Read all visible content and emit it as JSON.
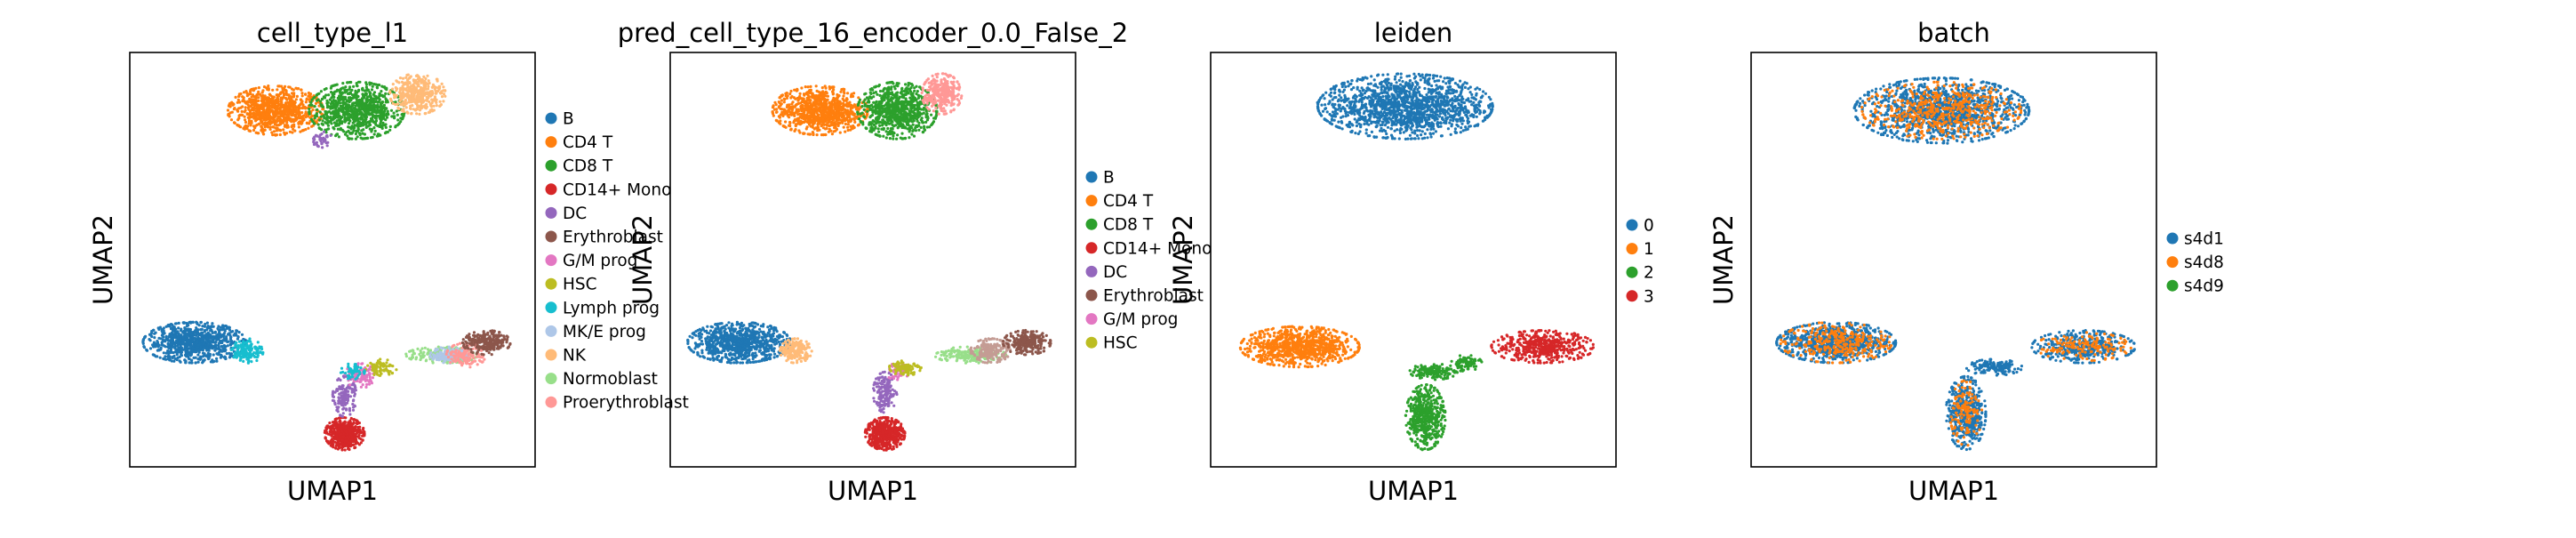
{
  "chart_data": [
    {
      "type": "scatter",
      "title": "cell_type_l1",
      "xlabel": "UMAP1",
      "ylabel": "UMAP2",
      "grid": false,
      "legend": "right",
      "series": [
        {
          "name": "B",
          "color": "#1f77b4"
        },
        {
          "name": "CD4 T",
          "color": "#ff7f0e"
        },
        {
          "name": "CD8 T",
          "color": "#2ca02c"
        },
        {
          "name": "CD14+ Mono",
          "color": "#d62728"
        },
        {
          "name": "DC",
          "color": "#9467bd"
        },
        {
          "name": "Erythroblast",
          "color": "#8c564b"
        },
        {
          "name": "G/M prog",
          "color": "#e377c2"
        },
        {
          "name": "HSC",
          "color": "#bcbd22"
        },
        {
          "name": "Lymph prog",
          "color": "#17becf"
        },
        {
          "name": "MK/E prog",
          "color": "#aec7e8"
        },
        {
          "name": "NK",
          "color": "#ffbb78"
        },
        {
          "name": "Normoblast",
          "color": "#98df8a"
        },
        {
          "name": "Proerythroblast",
          "color": "#ff9896"
        }
      ],
      "clusters": [
        {
          "series": "CD4 T",
          "cx": 0.36,
          "cy": 0.86,
          "rx": 0.12,
          "ry": 0.06,
          "n": 900
        },
        {
          "series": "CD8 T",
          "cx": 0.56,
          "cy": 0.86,
          "rx": 0.12,
          "ry": 0.07,
          "n": 900
        },
        {
          "series": "NK",
          "cx": 0.71,
          "cy": 0.9,
          "rx": 0.07,
          "ry": 0.05,
          "n": 400
        },
        {
          "series": "DC",
          "cx": 0.47,
          "cy": 0.79,
          "rx": 0.03,
          "ry": 0.02,
          "n": 40
        },
        {
          "series": "B",
          "cx": 0.16,
          "cy": 0.3,
          "rx": 0.13,
          "ry": 0.05,
          "n": 900
        },
        {
          "series": "Lymph prog",
          "cx": 0.29,
          "cy": 0.28,
          "rx": 0.04,
          "ry": 0.03,
          "n": 150
        },
        {
          "series": "CD14+ Mono",
          "cx": 0.53,
          "cy": 0.08,
          "rx": 0.05,
          "ry": 0.04,
          "n": 500
        },
        {
          "series": "DC",
          "cx": 0.53,
          "cy": 0.17,
          "rx": 0.03,
          "ry": 0.05,
          "n": 150
        },
        {
          "series": "G/M prog",
          "cx": 0.57,
          "cy": 0.22,
          "rx": 0.04,
          "ry": 0.03,
          "n": 100
        },
        {
          "series": "HSC",
          "cx": 0.62,
          "cy": 0.24,
          "rx": 0.04,
          "ry": 0.02,
          "n": 80
        },
        {
          "series": "Lymph prog",
          "cx": 0.55,
          "cy": 0.23,
          "rx": 0.03,
          "ry": 0.02,
          "n": 60
        },
        {
          "series": "Normoblast",
          "cx": 0.77,
          "cy": 0.27,
          "rx": 0.09,
          "ry": 0.02,
          "n": 200
        },
        {
          "series": "MK/E prog",
          "cx": 0.79,
          "cy": 0.27,
          "rx": 0.05,
          "ry": 0.02,
          "n": 150
        },
        {
          "series": "Proerythroblast",
          "cx": 0.83,
          "cy": 0.27,
          "rx": 0.05,
          "ry": 0.03,
          "n": 150
        },
        {
          "series": "Erythroblast",
          "cx": 0.88,
          "cy": 0.3,
          "rx": 0.06,
          "ry": 0.03,
          "n": 250
        }
      ]
    },
    {
      "type": "scatter",
      "title": "pred_cell_type_16_encoder_0.0_False_2",
      "xlabel": "UMAP1",
      "ylabel": "UMAP2",
      "grid": false,
      "legend": "right",
      "series": [
        {
          "name": "B",
          "color": "#1f77b4"
        },
        {
          "name": "CD4 T",
          "color": "#ff7f0e"
        },
        {
          "name": "CD8 T",
          "color": "#2ca02c"
        },
        {
          "name": "CD14+ Mono",
          "color": "#d62728"
        },
        {
          "name": "DC",
          "color": "#9467bd"
        },
        {
          "name": "Erythroblast",
          "color": "#8c564b"
        },
        {
          "name": "G/M prog",
          "color": "#e377c2"
        },
        {
          "name": "HSC",
          "color": "#bcbd22"
        }
      ],
      "clusters": [
        {
          "series": "CD4 T",
          "cx": 0.37,
          "cy": 0.86,
          "rx": 0.12,
          "ry": 0.06,
          "n": 900
        },
        {
          "series": "CD8 T",
          "cx": 0.56,
          "cy": 0.86,
          "rx": 0.1,
          "ry": 0.07,
          "n": 800
        },
        {
          "series": "#ff9896",
          "cx": 0.67,
          "cy": 0.9,
          "rx": 0.05,
          "ry": 0.05,
          "n": 300
        },
        {
          "series": "B",
          "cx": 0.17,
          "cy": 0.3,
          "rx": 0.13,
          "ry": 0.05,
          "n": 900
        },
        {
          "series": "#ffbb78",
          "cx": 0.31,
          "cy": 0.28,
          "rx": 0.04,
          "ry": 0.03,
          "n": 200
        },
        {
          "series": "CD14+ Mono",
          "cx": 0.53,
          "cy": 0.08,
          "rx": 0.05,
          "ry": 0.04,
          "n": 500
        },
        {
          "series": "DC",
          "cx": 0.53,
          "cy": 0.18,
          "rx": 0.03,
          "ry": 0.05,
          "n": 150
        },
        {
          "series": "G/M prog",
          "cx": 0.56,
          "cy": 0.23,
          "rx": 0.03,
          "ry": 0.02,
          "n": 60
        },
        {
          "series": "HSC",
          "cx": 0.58,
          "cy": 0.24,
          "rx": 0.04,
          "ry": 0.02,
          "n": 80
        },
        {
          "series": "#98df8a",
          "cx": 0.74,
          "cy": 0.27,
          "rx": 0.09,
          "ry": 0.02,
          "n": 200
        },
        {
          "series": "#c49c94",
          "cx": 0.79,
          "cy": 0.28,
          "rx": 0.05,
          "ry": 0.03,
          "n": 200
        },
        {
          "series": "Erythroblast",
          "cx": 0.88,
          "cy": 0.3,
          "rx": 0.06,
          "ry": 0.03,
          "n": 250
        }
      ]
    },
    {
      "type": "scatter",
      "title": "leiden",
      "xlabel": "UMAP1",
      "ylabel": "UMAP2",
      "grid": false,
      "legend": "right",
      "series": [
        {
          "name": "0",
          "color": "#1f77b4"
        },
        {
          "name": "1",
          "color": "#ff7f0e"
        },
        {
          "name": "2",
          "color": "#2ca02c"
        },
        {
          "name": "3",
          "color": "#d62728"
        }
      ],
      "clusters": [
        {
          "series": "0",
          "cx": 0.48,
          "cy": 0.87,
          "rx": 0.22,
          "ry": 0.08,
          "n": 1600
        },
        {
          "series": "1",
          "cx": 0.22,
          "cy": 0.29,
          "rx": 0.15,
          "ry": 0.05,
          "n": 900
        },
        {
          "series": "2",
          "cx": 0.53,
          "cy": 0.12,
          "rx": 0.05,
          "ry": 0.08,
          "n": 500
        },
        {
          "series": "2",
          "cx": 0.55,
          "cy": 0.23,
          "rx": 0.06,
          "ry": 0.02,
          "n": 150
        },
        {
          "series": "2",
          "cx": 0.63,
          "cy": 0.25,
          "rx": 0.04,
          "ry": 0.02,
          "n": 80
        },
        {
          "series": "3",
          "cx": 0.82,
          "cy": 0.29,
          "rx": 0.13,
          "ry": 0.04,
          "n": 500
        }
      ]
    },
    {
      "type": "scatter",
      "title": "batch",
      "xlabel": "UMAP1",
      "ylabel": "UMAP2",
      "grid": false,
      "legend": "right",
      "series": [
        {
          "name": "s4d1",
          "color": "#1f77b4"
        },
        {
          "name": "s4d8",
          "color": "#ff7f0e"
        },
        {
          "name": "s4d9",
          "color": "#2ca02c"
        }
      ],
      "clusters": [
        {
          "series": "s4d1",
          "cx": 0.47,
          "cy": 0.86,
          "rx": 0.22,
          "ry": 0.08,
          "n": 1300
        },
        {
          "series": "s4d8",
          "cx": 0.47,
          "cy": 0.86,
          "rx": 0.2,
          "ry": 0.07,
          "n": 500
        },
        {
          "series": "s4d1",
          "cx": 0.21,
          "cy": 0.3,
          "rx": 0.15,
          "ry": 0.05,
          "n": 800
        },
        {
          "series": "s4d8",
          "cx": 0.21,
          "cy": 0.3,
          "rx": 0.14,
          "ry": 0.05,
          "n": 300
        },
        {
          "series": "s4d1",
          "cx": 0.53,
          "cy": 0.13,
          "rx": 0.05,
          "ry": 0.09,
          "n": 450
        },
        {
          "series": "s4d8",
          "cx": 0.53,
          "cy": 0.13,
          "rx": 0.04,
          "ry": 0.08,
          "n": 130
        },
        {
          "series": "s4d1",
          "cx": 0.6,
          "cy": 0.24,
          "rx": 0.07,
          "ry": 0.02,
          "n": 150
        },
        {
          "series": "s4d1",
          "cx": 0.82,
          "cy": 0.29,
          "rx": 0.13,
          "ry": 0.04,
          "n": 400
        },
        {
          "series": "s4d8",
          "cx": 0.82,
          "cy": 0.29,
          "rx": 0.12,
          "ry": 0.035,
          "n": 150
        }
      ]
    }
  ]
}
